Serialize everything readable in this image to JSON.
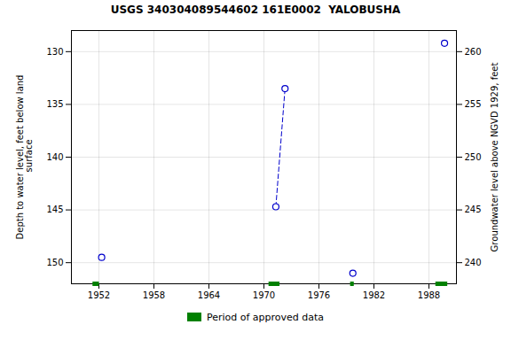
{
  "chart_data": {
    "type": "scatter",
    "title": "USGS 340304089544602 161E0002  YALOBUSHA",
    "ylabel": "Depth to water level, feet below land\n surface",
    "y2label": "Groundwater level above NGVD 1929, feet",
    "xlim": [
      1949,
      1991
    ],
    "xticks": [
      1952,
      1958,
      1964,
      1970,
      1976,
      1982,
      1988
    ],
    "ylim": [
      152,
      128
    ],
    "yticks": [
      130,
      135,
      140,
      145,
      150
    ],
    "y2lim": [
      238,
      262
    ],
    "y2ticks": [
      260,
      255,
      250,
      245,
      240
    ],
    "grid": true,
    "legend": "bottom",
    "series": [
      {
        "type": "line",
        "line_style": "dashed",
        "color": "#0000cc",
        "x": [
          1971.3,
          1972.3
        ],
        "values": [
          144.7,
          133.5
        ]
      },
      {
        "type": "scatter",
        "marker": "open_circle",
        "color": "#0000cc",
        "x": [
          1952.3,
          1971.3,
          1972.3,
          1979.7,
          1989.7
        ],
        "values": [
          149.5,
          144.7,
          133.5,
          151.0,
          129.2
        ]
      },
      {
        "name": "Period of approved data",
        "type": "span",
        "color": "#008000",
        "segments": [
          [
            1951.3,
            1952.0
          ],
          [
            1970.5,
            1971.7
          ],
          [
            1979.4,
            1979.8
          ],
          [
            1988.7,
            1990.0
          ]
        ]
      }
    ]
  }
}
